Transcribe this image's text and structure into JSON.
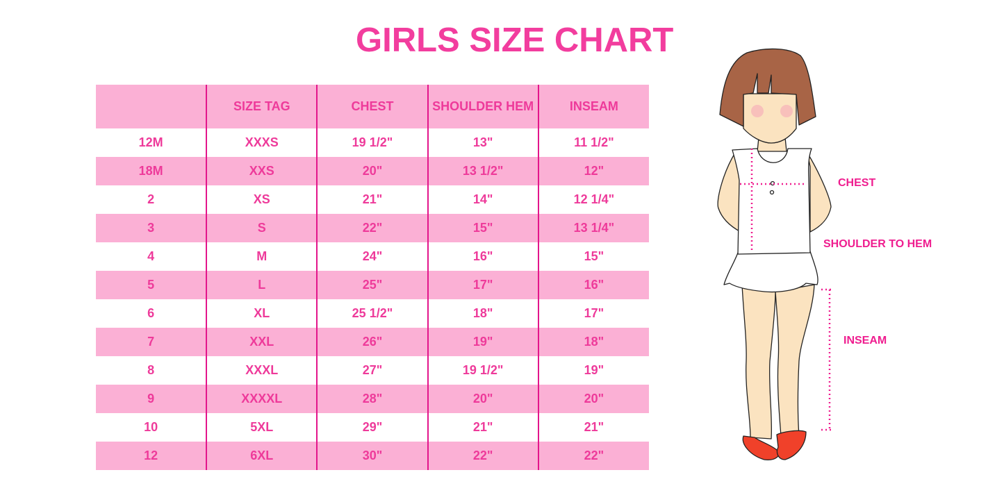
{
  "title": "GIRLS SIZE CHART",
  "colors": {
    "accent": "#ee3a9a",
    "row_pink": "#fbb0d5",
    "divider": "#e3158b"
  },
  "table": {
    "headers": [
      "",
      "SIZE TAG",
      "CHEST",
      "SHOULDER HEM",
      "INSEAM"
    ],
    "rows": [
      [
        "12M",
        "XXXS",
        "19 1/2\"",
        "13\"",
        "11 1/2\""
      ],
      [
        "18M",
        "XXS",
        "20\"",
        "13 1/2\"",
        "12\""
      ],
      [
        "2",
        "XS",
        "21\"",
        "14\"",
        "12 1/4\""
      ],
      [
        "3",
        "S",
        "22\"",
        "15\"",
        "13 1/4\""
      ],
      [
        "4",
        "M",
        "24\"",
        "16\"",
        "15\""
      ],
      [
        "5",
        "L",
        "25\"",
        "17\"",
        "16\""
      ],
      [
        "6",
        "XL",
        "25 1/2\"",
        "18\"",
        "17\""
      ],
      [
        "7",
        "XXL",
        "26\"",
        "19\"",
        "18\""
      ],
      [
        "8",
        "XXXL",
        "27\"",
        "19 1/2\"",
        "19\""
      ],
      [
        "9",
        "XXXXL",
        "28\"",
        "20\"",
        "20\""
      ],
      [
        "10",
        "5XL",
        "29\"",
        "21\"",
        "21\""
      ],
      [
        "12",
        "6XL",
        "30\"",
        "22\"",
        "22\""
      ]
    ]
  },
  "illustration": {
    "labels": {
      "chest": "CHEST",
      "shoulder_to_hem": "SHOULDER TO HEM",
      "inseam": "INSEAM"
    }
  }
}
